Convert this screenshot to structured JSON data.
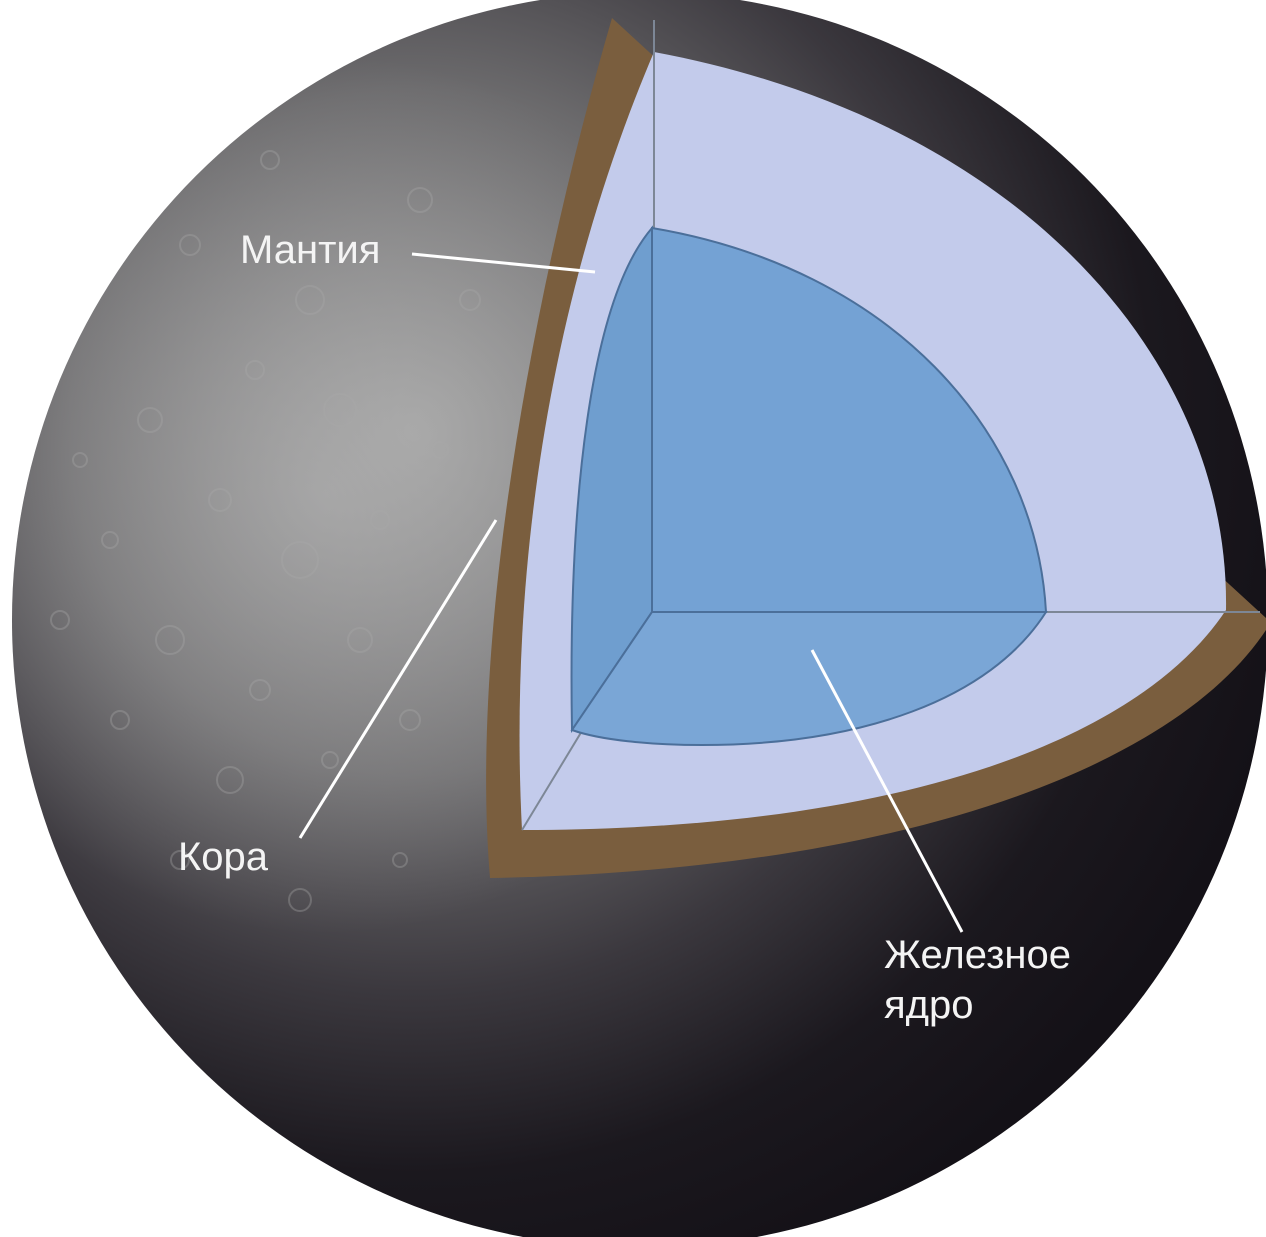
{
  "labels": {
    "mantle": "Мантия",
    "crust": "Кора",
    "core_line1": "Железное",
    "core_line2": "ядро"
  },
  "colors": {
    "crust": "#7a5e3e",
    "mantle": "#c3cbeb",
    "core": "#74a2d4",
    "surface_light": "#8e8e8e",
    "surface_dark": "#17141b",
    "leader_lines": "#ffffff"
  }
}
